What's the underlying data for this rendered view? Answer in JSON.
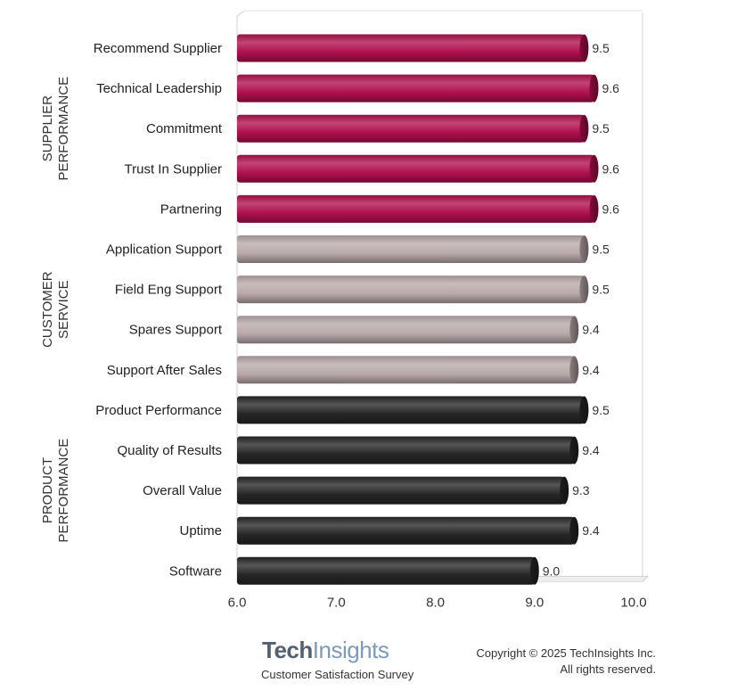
{
  "chart_data": {
    "type": "bar",
    "orientation": "horizontal",
    "xlim": [
      6.0,
      10.0
    ],
    "x_ticks": [
      "6.0",
      "7.0",
      "8.0",
      "9.0",
      "10.0"
    ],
    "groups": [
      {
        "label_lines": [
          "SUPPLIER",
          "PERFORMANCE"
        ],
        "color": "#b0104e",
        "items": [
          {
            "label": "Recommend Supplier",
            "value": 9.5,
            "value_label": "9.5"
          },
          {
            "label": "Technical Leadership",
            "value": 9.6,
            "value_label": "9.6"
          },
          {
            "label": "Commitment",
            "value": 9.5,
            "value_label": "9.5"
          },
          {
            "label": "Trust In Supplier",
            "value": 9.6,
            "value_label": "9.6"
          },
          {
            "label": "Partnering",
            "value": 9.6,
            "value_label": "9.6"
          }
        ]
      },
      {
        "label_lines": [
          "CUSTOMER",
          "SERVICE"
        ],
        "color": "#b9a9ab",
        "items": [
          {
            "label": "Application Support",
            "value": 9.5,
            "value_label": "9.5"
          },
          {
            "label": "Field Eng Support",
            "value": 9.5,
            "value_label": "9.5"
          },
          {
            "label": "Spares Support",
            "value": 9.4,
            "value_label": "9.4"
          },
          {
            "label": "Support After Sales",
            "value": 9.4,
            "value_label": "9.4"
          }
        ]
      },
      {
        "label_lines": [
          "PRODUCT",
          "PERFORMANCE"
        ],
        "color": "#262626",
        "items": [
          {
            "label": "Product Performance",
            "value": 9.5,
            "value_label": "9.5"
          },
          {
            "label": "Quality of Results",
            "value": 9.4,
            "value_label": "9.4"
          },
          {
            "label": "Overall Value",
            "value": 9.3,
            "value_label": "9.3"
          },
          {
            "label": "Uptime",
            "value": 9.4,
            "value_label": "9.4"
          },
          {
            "label": "Software",
            "value": 9.0,
            "value_label": "9.0"
          }
        ]
      }
    ],
    "grid": false,
    "legend": "none"
  },
  "footer": {
    "brand_part1": "Tech",
    "brand_part2": "Insights",
    "subtitle": "Customer Satisfaction Survey",
    "copyright_line1": "Copyright © 2025 TechInsights Inc.",
    "copyright_line2": "All rights reserved."
  }
}
